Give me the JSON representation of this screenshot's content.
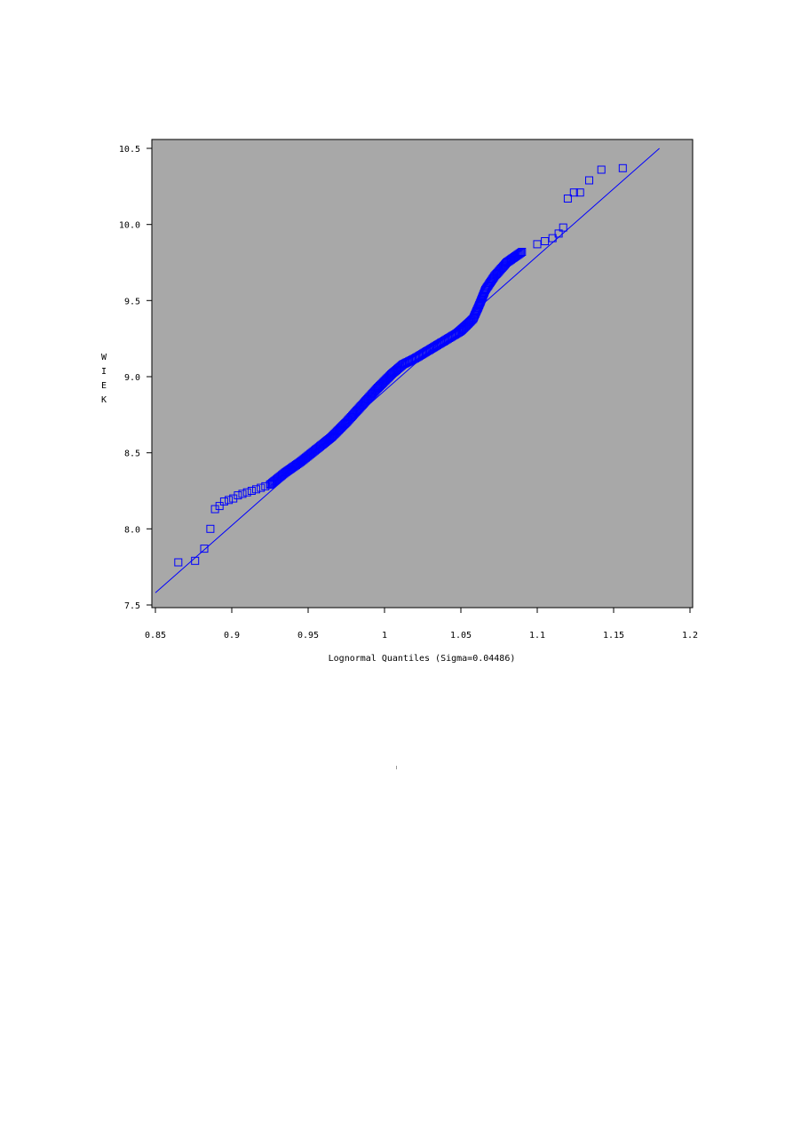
{
  "chart_data": {
    "type": "scatter",
    "title": "",
    "xlabel": "Lognormal Quantiles (Sigma=0.04486)",
    "ylabel": "WIEK",
    "xlim": [
      0.85,
      1.2
    ],
    "ylim": [
      7.5,
      10.55
    ],
    "x_ticks": [
      "0.85",
      "0.9",
      "0.95",
      "1",
      "1.05",
      "1.1",
      "1.15",
      "1.2"
    ],
    "y_ticks": [
      "7.5",
      "8.0",
      "8.5",
      "9.0",
      "9.5",
      "10.0",
      "10.5"
    ],
    "background": "#a8a8a8",
    "marker_color": "#0000ff",
    "marker": "square",
    "grid": false,
    "reference_line": {
      "x": [
        0.85,
        1.18
      ],
      "y": [
        7.58,
        10.5
      ]
    },
    "quantile_curve": {
      "x": [
        0.925,
        0.935,
        0.945,
        0.955,
        0.965,
        0.975,
        0.985,
        0.995,
        1.005,
        1.012,
        1.02,
        1.03,
        1.04,
        1.05,
        1.058,
        1.062,
        1.066,
        1.072,
        1.08,
        1.09
      ],
      "y": [
        8.29,
        8.37,
        8.44,
        8.52,
        8.6,
        8.7,
        8.81,
        8.92,
        9.02,
        9.08,
        9.12,
        9.18,
        9.24,
        9.3,
        9.38,
        9.47,
        9.57,
        9.66,
        9.75,
        9.82
      ]
    },
    "series": [
      {
        "values": [
          [
            0.865,
            7.78
          ],
          [
            0.876,
            7.79
          ],
          [
            0.882,
            7.87
          ],
          [
            0.886,
            8.0
          ],
          [
            0.889,
            8.13
          ],
          [
            0.892,
            8.15
          ],
          [
            0.895,
            8.18
          ],
          [
            0.898,
            8.19
          ],
          [
            0.901,
            8.2
          ],
          [
            0.904,
            8.22
          ],
          [
            0.907,
            8.23
          ],
          [
            0.91,
            8.24
          ],
          [
            0.913,
            8.25
          ],
          [
            0.916,
            8.26
          ],
          [
            0.919,
            8.27
          ],
          [
            0.922,
            8.28
          ],
          [
            0.925,
            8.29
          ],
          [
            1.1,
            9.87
          ],
          [
            1.105,
            9.89
          ],
          [
            1.11,
            9.91
          ],
          [
            1.114,
            9.94
          ],
          [
            1.117,
            9.98
          ],
          [
            1.12,
            10.17
          ],
          [
            1.124,
            10.21
          ],
          [
            1.128,
            10.21
          ],
          [
            1.134,
            10.29
          ],
          [
            1.142,
            10.36
          ],
          [
            1.156,
            10.37
          ]
        ]
      }
    ]
  }
}
